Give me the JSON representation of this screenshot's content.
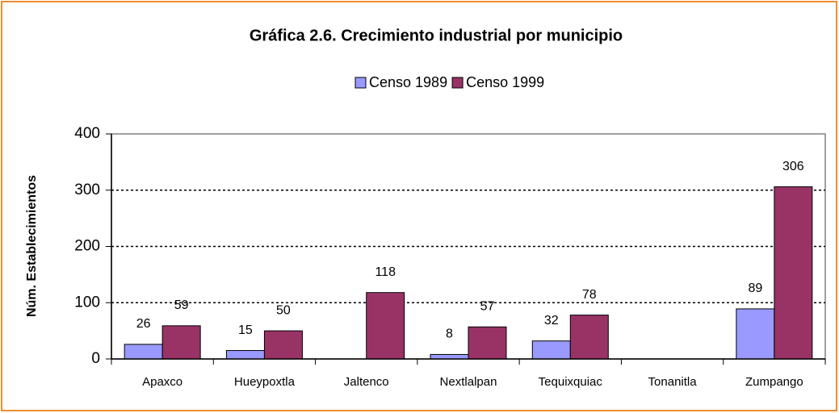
{
  "chart_data": {
    "type": "bar",
    "title": "Gráfica 2.6. Crecimiento industrial por municipio",
    "y_label": "Núm. Establecimientos",
    "categories": [
      "Apaxco",
      "Hueypoxtla",
      "Jaltenco",
      "Nextlalpan",
      "Tequixquiac",
      "Tonanitla",
      "Zumpango"
    ],
    "series": [
      {
        "name": "Censo 1989",
        "color": "#9999ff",
        "values": [
          26,
          15,
          null,
          8,
          32,
          null,
          89
        ]
      },
      {
        "name": "Censo 1999",
        "color": "#993366",
        "values": [
          59,
          50,
          118,
          57,
          78,
          null,
          306
        ]
      }
    ],
    "ylim": [
      0,
      400
    ],
    "yticks": [
      0,
      100,
      200,
      300,
      400
    ],
    "grid": true,
    "legend": "top"
  }
}
